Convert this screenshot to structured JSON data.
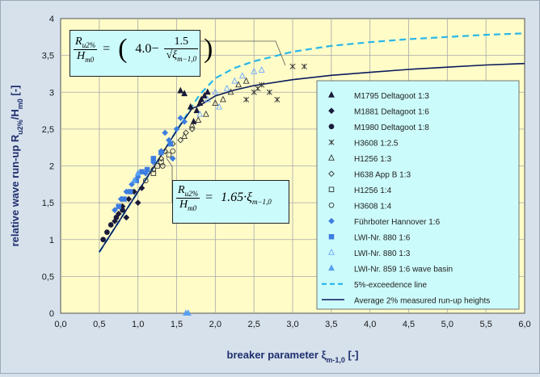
{
  "chart_data": {
    "type": "scatter",
    "xlabel": "breaker parameter ξ",
    "xlabel_sub": "m-1,0",
    "xlabel_unit": " [-]",
    "ylabel": "relative wave run-up R",
    "ylabel_sub": "u2%",
    "ylabel_mid": "/H",
    "ylabel_sub2": "m0",
    "ylabel_unit": " [-]",
    "xlim": [
      0,
      6
    ],
    "ylim": [
      0,
      4
    ],
    "x_ticks": [
      "0,0",
      "0,5",
      "1,0",
      "1,5",
      "2,0",
      "2,5",
      "3,0",
      "3,5",
      "4,0",
      "4,5",
      "5,0",
      "5,5",
      "6,0"
    ],
    "y_ticks": [
      "0",
      "0,5",
      "1",
      "1,5",
      "2",
      "2,5",
      "3",
      "3,5",
      "4"
    ],
    "grid": true,
    "legend_position": "right",
    "series": [
      {
        "name": "M1795 Deltagoot 1:3",
        "marker": "triangle-filled",
        "color": "#1a1a3a",
        "points": [
          [
            1.72,
            2.6
          ],
          [
            1.76,
            2.75
          ],
          [
            1.8,
            2.85
          ],
          [
            1.82,
            2.9
          ],
          [
            1.86,
            2.95
          ],
          [
            1.9,
            3.0
          ],
          [
            1.55,
            3.02
          ],
          [
            1.6,
            2.98
          ],
          [
            1.68,
            2.8
          ]
        ]
      },
      {
        "name": "M1881 Deltagoot 1:6",
        "marker": "diamond-filled",
        "color": "#1a1a3a",
        "points": [
          [
            0.7,
            1.25
          ],
          [
            0.75,
            1.35
          ],
          [
            0.8,
            1.45
          ],
          [
            0.88,
            1.55
          ],
          [
            0.95,
            1.65
          ],
          [
            1.0,
            1.5
          ],
          [
            1.05,
            1.7
          ],
          [
            0.85,
            1.3
          ]
        ]
      },
      {
        "name": "M1980 Deltagoot 1:8",
        "marker": "circle-filled",
        "color": "#1a1a3a",
        "points": [
          [
            0.55,
            1.0
          ],
          [
            0.6,
            1.1
          ],
          [
            0.65,
            1.2
          ],
          [
            0.72,
            1.3
          ],
          [
            0.8,
            1.4
          ]
        ]
      },
      {
        "name": "H3608 1:2.5",
        "marker": "star",
        "color": "#333",
        "points": [
          [
            2.5,
            3.0
          ],
          [
            2.6,
            3.1
          ],
          [
            2.7,
            3.0
          ],
          [
            2.8,
            2.9
          ],
          [
            3.0,
            3.35
          ],
          [
            3.15,
            3.35
          ],
          [
            2.4,
            2.9
          ],
          [
            2.55,
            3.05
          ]
        ]
      },
      {
        "name": "H1256 1:3",
        "marker": "triangle-open",
        "color": "#333",
        "points": [
          [
            1.6,
            2.4
          ],
          [
            1.7,
            2.55
          ],
          [
            1.78,
            2.62
          ],
          [
            1.88,
            2.7
          ],
          [
            2.0,
            2.85
          ],
          [
            2.1,
            2.9
          ],
          [
            2.2,
            3.0
          ],
          [
            2.3,
            3.1
          ],
          [
            2.4,
            3.15
          ]
        ]
      },
      {
        "name": "H638 App B 1:3",
        "marker": "diamond-open",
        "color": "#333",
        "points": [
          [
            1.3,
            2.1
          ],
          [
            1.35,
            2.2
          ],
          [
            1.45,
            2.3
          ],
          [
            1.55,
            2.35
          ],
          [
            1.62,
            2.45
          ],
          [
            1.7,
            2.5
          ]
        ]
      },
      {
        "name": "H1256 1:4",
        "marker": "square-open",
        "color": "#333",
        "points": [
          [
            1.2,
            1.9
          ],
          [
            1.25,
            2.0
          ],
          [
            1.3,
            2.05
          ],
          [
            1.4,
            2.15
          ]
        ]
      },
      {
        "name": "H3608 1:4",
        "marker": "circle-open",
        "color": "#333",
        "points": [
          [
            1.1,
            1.8
          ],
          [
            1.2,
            1.95
          ],
          [
            1.32,
            2.0
          ],
          [
            1.45,
            2.2
          ]
        ]
      },
      {
        "name": "Führboter Hannover 1:6",
        "marker": "diamond-filled",
        "color": "#3d7de0",
        "points": [
          [
            0.7,
            1.4
          ],
          [
            0.78,
            1.55
          ],
          [
            0.85,
            1.65
          ],
          [
            0.92,
            1.75
          ],
          [
            1.0,
            1.85
          ],
          [
            1.1,
            1.9
          ],
          [
            1.2,
            2.05
          ],
          [
            1.3,
            2.2
          ],
          [
            1.4,
            2.35
          ],
          [
            1.5,
            2.5
          ],
          [
            1.6,
            2.6
          ],
          [
            1.35,
            2.45
          ],
          [
            1.55,
            2.65
          ],
          [
            1.45,
            2.1
          ]
        ]
      },
      {
        "name": "LWI-Nr. 880 1:6",
        "marker": "square-filled",
        "color": "#3d7de0",
        "points": [
          [
            0.75,
            1.45
          ],
          [
            0.82,
            1.55
          ],
          [
            0.9,
            1.65
          ],
          [
            0.98,
            1.8
          ],
          [
            1.05,
            1.92
          ],
          [
            1.12,
            1.95
          ],
          [
            1.2,
            2.1
          ],
          [
            1.3,
            2.18
          ],
          [
            1.42,
            2.3
          ]
        ]
      },
      {
        "name": "LWI-Nr. 880 1:3",
        "marker": "triangle-open",
        "color": "#6aa8ff",
        "points": [
          [
            1.8,
            2.7
          ],
          [
            1.9,
            2.9
          ],
          [
            2.0,
            3.0
          ],
          [
            2.15,
            3.05
          ],
          [
            2.25,
            3.15
          ],
          [
            2.35,
            3.22
          ],
          [
            2.5,
            3.28
          ],
          [
            2.6,
            3.3
          ],
          [
            2.05,
            2.8
          ]
        ]
      },
      {
        "name": "LWI-Nr. 859 1:6 wave basin",
        "marker": "triangle-filled",
        "color": "#5aa0f0",
        "points": [
          [
            1.65,
            0.0
          ],
          [
            1.62,
            0.0
          ],
          [
            0.95,
            1.8
          ],
          [
            1.0,
            1.9
          ]
        ]
      }
    ],
    "lines": [
      {
        "name": "5%-exceedence line",
        "style": "dashed",
        "color": "#29b6e8",
        "x": [
          0.5,
          0.75,
          1.0,
          1.25,
          1.5,
          1.75,
          1.8,
          2.0,
          2.25,
          2.5,
          3.0,
          3.5,
          4.0,
          4.5,
          5.0,
          5.5,
          6.0
        ],
        "y": [
          0.83,
          1.24,
          1.65,
          2.06,
          2.48,
          2.89,
          2.97,
          3.19,
          3.33,
          3.42,
          3.55,
          3.63,
          3.68,
          3.72,
          3.75,
          3.78,
          3.8
        ]
      },
      {
        "name": "Average 2% measured run-up heights",
        "style": "solid",
        "color": "#0a1a5a",
        "x": [
          0.5,
          0.75,
          1.0,
          1.25,
          1.5,
          1.7,
          1.8,
          2.0,
          2.25,
          2.5,
          3.0,
          3.5,
          4.0,
          4.5,
          5.0,
          5.5,
          6.0
        ],
        "y": [
          0.83,
          1.24,
          1.65,
          2.06,
          2.48,
          2.78,
          2.82,
          2.95,
          3.03,
          3.09,
          3.17,
          3.23,
          3.27,
          3.31,
          3.34,
          3.37,
          3.39
        ]
      }
    ]
  },
  "equations": {
    "top": {
      "num_main": "R",
      "num_sub": "u2%",
      "den_main": "H",
      "den_sub": "m0",
      "eq": "=",
      "left": "4.0−",
      "inner_num": "1.5",
      "inner_den_main": "ξ",
      "inner_den_sub": "m−1,0"
    },
    "bottom": {
      "num_main": "R",
      "num_sub": "u2%",
      "den_main": "H",
      "den_sub": "m0",
      "eq": "=",
      "rhs": "1.65·ξ",
      "rhs_sub": "m−1,0"
    }
  },
  "colors": {
    "plot_bg": "#fffcc8",
    "legend_bg": "#ccfbfb",
    "outer_bg": "#d6e1ec",
    "grid": "#a8a8a8",
    "axis_text": "#1f2f6e"
  }
}
